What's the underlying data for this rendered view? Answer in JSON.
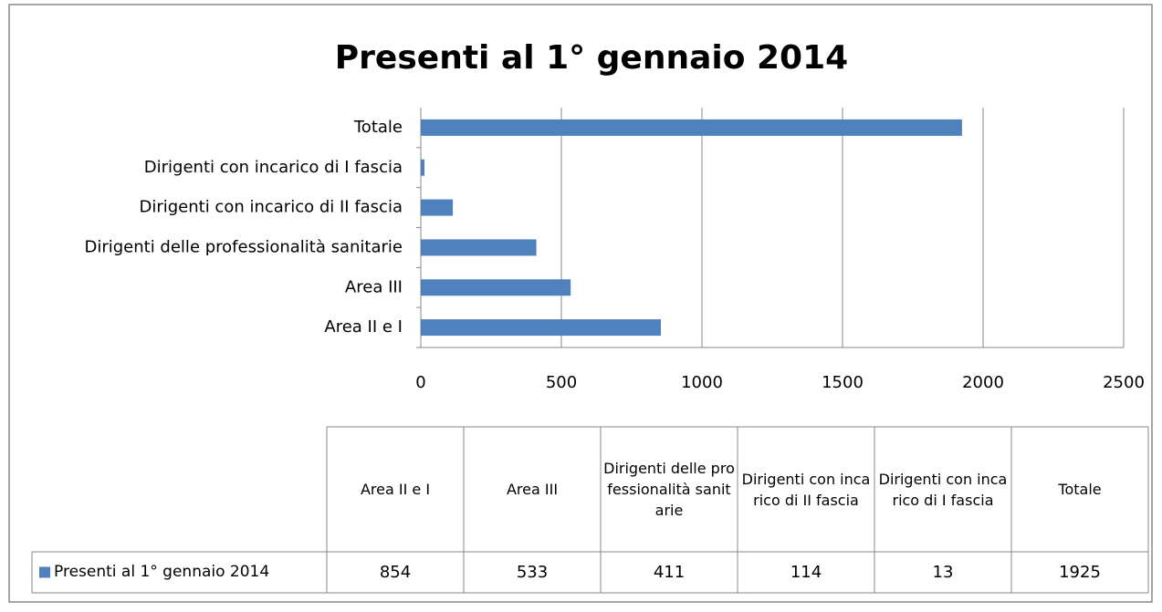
{
  "chart_data": {
    "type": "bar",
    "orientation": "horizontal",
    "title": "Presenti al 1° gennaio 2014",
    "categories": [
      "Area II e I",
      "Area III",
      "Dirigenti delle professionalità sanitarie",
      "Dirigenti con incarico di II fascia",
      "Dirigenti con incarico di I fascia",
      "Totale"
    ],
    "series": [
      {
        "name": "Presenti al 1° gennaio 2014",
        "color": "#4f81bd",
        "values": [
          854,
          533,
          411,
          114,
          13,
          1925
        ]
      }
    ],
    "xlim": [
      0,
      2500
    ],
    "xticks": [
      0,
      500,
      1000,
      1500,
      2000,
      2500
    ],
    "grid": true,
    "data_table": true
  }
}
